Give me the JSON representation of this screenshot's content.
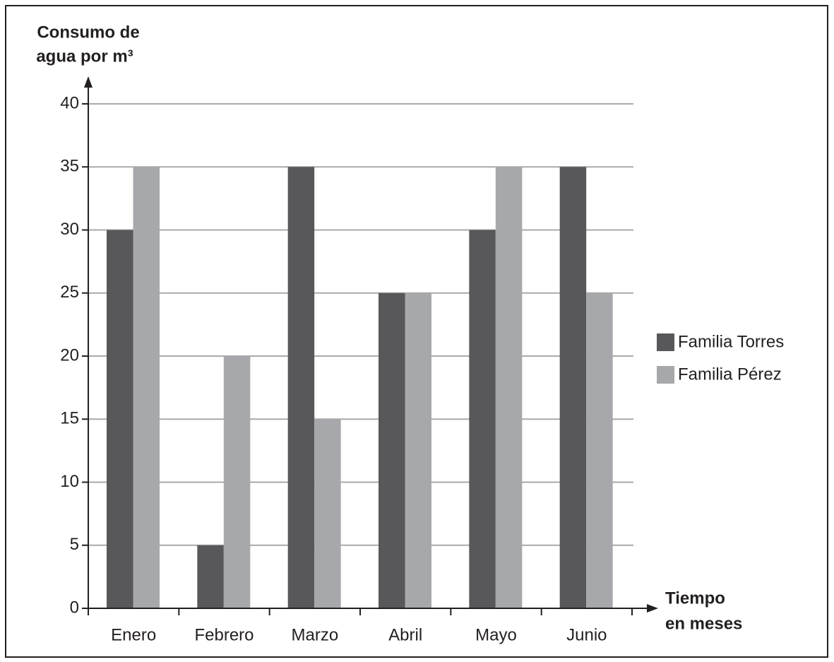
{
  "chart_data": {
    "type": "bar",
    "ylabel": [
      "Consumo de",
      "agua por m³"
    ],
    "xlabel": [
      "Tiempo",
      "en meses"
    ],
    "categories": [
      "Enero",
      "Febrero",
      "Marzo",
      "Abril",
      "Mayo",
      "Junio"
    ],
    "series": [
      {
        "name": "Familia Torres",
        "color": "#58585a",
        "values": [
          30,
          5,
          35,
          25,
          30,
          35
        ]
      },
      {
        "name": "Familia Pérez",
        "color": "#a7a8ab",
        "values": [
          35,
          20,
          15,
          25,
          35,
          25
        ]
      }
    ],
    "ylim": [
      0,
      40
    ],
    "yticks": [
      0,
      5,
      10,
      15,
      20,
      25,
      30,
      35,
      40
    ],
    "grid": true,
    "legend": "right"
  }
}
